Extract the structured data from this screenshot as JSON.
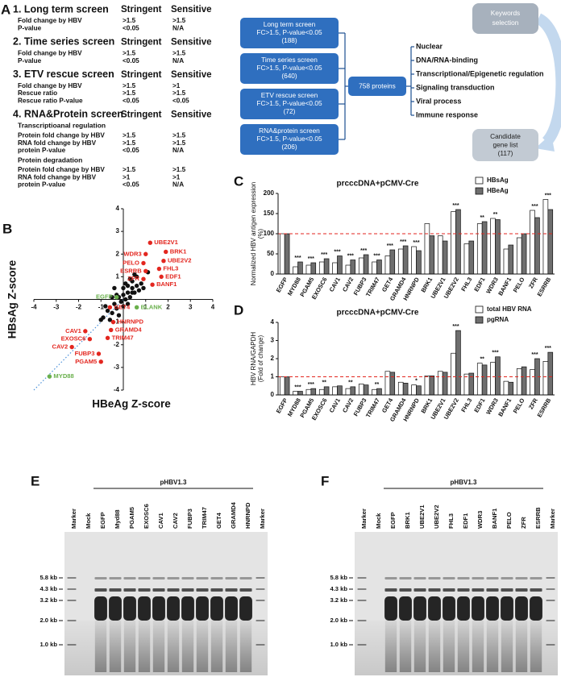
{
  "panel_a": {
    "label": "A",
    "columns": [
      "Stringent",
      "Sensitive"
    ],
    "screens": [
      {
        "title": "1. Long term screen",
        "rows": [
          [
            "Fold change by HBV",
            ">1.5",
            ">1.5"
          ],
          [
            "P-value",
            "<0.05",
            "N/A"
          ]
        ]
      },
      {
        "title": "2. Time series screen",
        "rows": [
          [
            "Fold change by HBV",
            ">1.5",
            ">1.5"
          ],
          [
            "P-value",
            "<0.05",
            "N/A"
          ]
        ]
      },
      {
        "title": "3. ETV rescue screen",
        "rows": [
          [
            "Fold change by HBV",
            ">1.5",
            ">1"
          ],
          [
            "Rescue ratio",
            ">1.5",
            ">1.5"
          ],
          [
            "Rescue ratio P-value",
            "<0.05",
            "<0.05"
          ]
        ]
      },
      {
        "title": "4. RNA&Protein screen",
        "rows": [
          [
            "Transcriptioanal regulation"
          ],
          [
            "Protein fold change by HBV",
            ">1.5",
            ">1.5"
          ],
          [
            "RNA fold change by HBV",
            ">1.5",
            ">1.5"
          ],
          [
            "protein P-value",
            "<0.05",
            "N/A"
          ],
          [
            "Protein degradation"
          ],
          [
            "Protein fold change by HBV",
            ">1.5",
            ">1.5"
          ],
          [
            "RNA fold change by HBV",
            ">1",
            ">1"
          ],
          [
            "protein P-value",
            "<0.05",
            "N/A"
          ]
        ]
      }
    ],
    "flow": {
      "screens": [
        [
          "Long term screen",
          "FC>1.5, P-value<0.05",
          "(188)"
        ],
        [
          "Time series screen",
          "FC>1.5, P-value<0.05",
          "(640)"
        ],
        [
          "ETV rescue screen",
          "FC>1.5, P-value<0.05",
          "(72)"
        ],
        [
          "RNA&protein screen",
          "FC>1.5, P-value<0.05",
          "(206)"
        ]
      ],
      "total": "758 proteins",
      "keywords": [
        "Keywords",
        "selection"
      ],
      "categories": [
        "Nuclear",
        "DNA/RNA-binding",
        "Transcriptional/Epigenetic regulation",
        "Signaling transduction",
        "Viral process",
        "Immune response"
      ],
      "result": [
        "Candidate",
        "gene list",
        "(117)"
      ]
    }
  },
  "chart_data": [
    {
      "type": "scatter",
      "panel": "B",
      "x_label": "HBeAg Z-score",
      "y_label": "HBsAg Z-score",
      "xlim": [
        -4,
        4
      ],
      "ylim": [
        -4,
        4
      ],
      "xticks": [
        -4,
        -3,
        -2,
        -1,
        1,
        2,
        3,
        4
      ],
      "yticks": [
        -4,
        -3,
        -2,
        -1,
        1,
        2,
        3,
        4
      ],
      "series": [
        {
          "color": "#111111",
          "x": [
            -0.9,
            -0.7,
            -0.5,
            -0.4,
            -0.3,
            -0.2,
            -0.1,
            0,
            0.1,
            0.2,
            0.3,
            0.4,
            0.5,
            0.6,
            0.7,
            -0.6,
            -0.3,
            0,
            0.2,
            0.4,
            0.6,
            0.8,
            -0.8,
            -0.4,
            -0.2,
            0.1,
            0.3,
            0.5,
            -0.5,
            0.9,
            1.1,
            0,
            -1.0,
            0.2,
            0.4
          ],
          "y": [
            -0.8,
            -0.5,
            -0.6,
            -0.2,
            -0.4,
            0.1,
            -0.1,
            0.2,
            0,
            0.3,
            0.1,
            0.5,
            0.3,
            0.6,
            0.4,
            -0.9,
            0.2,
            -0.3,
            0.6,
            0.8,
            1.0,
            0.7,
            -0.3,
            0.5,
            -0.7,
            0.7,
            0.9,
            1.1,
            0.1,
            0.5,
            1.2,
            0.5,
            -0.9,
            -0.2,
            0.3
          ]
        },
        {
          "color": "#e3261f",
          "labels": [
            "UBE2V1",
            "BRK1",
            "WDR3",
            "UBE2V2",
            "PELO",
            "FHL3",
            "ESRRB",
            "EDF1",
            "ZFR",
            "BANF1",
            "GET4",
            "HNRNPD",
            "GRAMD4",
            "TRIM47",
            "CAV1",
            "EXOSC6",
            "CAV2",
            "FUBP3",
            "PGAM5"
          ],
          "x": [
            1.2,
            1.9,
            1.0,
            1.8,
            0.9,
            1.6,
            1.0,
            1.7,
            0.9,
            1.3,
            -0.6,
            -0.45,
            -0.55,
            -0.7,
            -1.7,
            -1.5,
            -2.3,
            -1.1,
            -1.0
          ],
          "y": [
            2.5,
            2.1,
            2.0,
            1.7,
            1.6,
            1.35,
            1.25,
            1.0,
            0.9,
            0.65,
            -0.35,
            -1.0,
            -1.35,
            -1.7,
            -1.4,
            -1.75,
            -2.1,
            -2.4,
            -2.75
          ]
        },
        {
          "color": "#6ab04c",
          "labels": [
            "EGFP",
            "BLANK",
            "MYD88"
          ],
          "x": [
            -0.3,
            0.6,
            -3.3
          ],
          "y": [
            0.1,
            -0.35,
            -3.4
          ]
        }
      ]
    },
    {
      "type": "bar",
      "panel": "C",
      "title": "prcccDNA+pCMV-Cre",
      "y_label": [
        "Normalized HBV antigen expression",
        "(%)"
      ],
      "categories": [
        "EGFP",
        "MYD88",
        "PGAM5",
        "EXOSC6",
        "CAV1",
        "CAV2",
        "FUBP3",
        "TRIM47",
        "GET4",
        "GRAMD4",
        "HNRNPD",
        "BRK1",
        "UBE2V1",
        "UBE2V2",
        "FHL3",
        "EDF1",
        "WDR3",
        "BANF1",
        "PELO",
        "ZFR",
        "ESRRB"
      ],
      "series": [
        {
          "name": "HBsAg",
          "color": "#ffffff",
          "values": [
            100,
            18,
            22,
            30,
            28,
            22,
            40,
            30,
            45,
            62,
            68,
            125,
            95,
            155,
            75,
            125,
            138,
            62,
            90,
            158,
            185
          ]
        },
        {
          "name": "HBeAg",
          "color": "#6e6e6e",
          "values": [
            100,
            30,
            28,
            38,
            45,
            35,
            48,
            35,
            60,
            70,
            58,
            95,
            82,
            160,
            82,
            130,
            135,
            72,
            100,
            140,
            160
          ]
        }
      ],
      "significance": [
        null,
        "***",
        "***",
        "***",
        "***",
        "***",
        "***",
        "***",
        "***",
        "***",
        "***",
        null,
        null,
        "***",
        null,
        "**",
        "**",
        null,
        null,
        "***",
        "***"
      ],
      "reference_line": 100,
      "ylim": [
        0,
        200
      ],
      "yticks": [
        0,
        50,
        100,
        150,
        200
      ]
    },
    {
      "type": "bar",
      "panel": "D",
      "title": "prcccDNA+pCMV-Cre",
      "y_label": [
        "HBV RNA/GAPDH",
        "(Fold of change)"
      ],
      "categories": [
        "EGFP",
        "MYD88",
        "PGAM5",
        "EXOSC6",
        "CAV1",
        "CAV2",
        "FUBP3",
        "TRIM47",
        "GET4",
        "GRAMD4",
        "HNRNPD",
        "BRK1",
        "UBE2V1",
        "UBE2V2",
        "FHL3",
        "EDF1",
        "WDR3",
        "BANF1",
        "PELO",
        "ZFR",
        "ESRRB"
      ],
      "series": [
        {
          "name": "total HBV RNA",
          "color": "#ffffff",
          "values": [
            1.0,
            0.2,
            0.3,
            0.3,
            0.45,
            0.35,
            0.6,
            0.3,
            1.3,
            0.7,
            0.55,
            1.05,
            1.3,
            2.3,
            1.15,
            1.75,
            1.8,
            0.75,
            1.45,
            1.4,
            1.85
          ]
        },
        {
          "name": "pgRNA",
          "color": "#6e6e6e",
          "values": [
            1.0,
            0.2,
            0.35,
            0.45,
            0.5,
            0.45,
            0.55,
            0.35,
            1.25,
            0.65,
            0.5,
            1.05,
            1.25,
            3.55,
            1.2,
            1.65,
            2.1,
            0.7,
            1.55,
            2.0,
            2.35
          ]
        }
      ],
      "significance": [
        null,
        "***",
        "***",
        "**",
        null,
        "**",
        null,
        "**",
        null,
        null,
        "*",
        null,
        null,
        "***",
        null,
        "**",
        "***",
        null,
        null,
        "***",
        "***"
      ],
      "reference_line": 1,
      "ylim": [
        0,
        4
      ],
      "yticks": [
        0,
        1,
        2,
        3,
        4
      ]
    }
  ],
  "panel_e": {
    "label": "E",
    "plasmid": "pHBV1.3",
    "lanes": [
      "Marker",
      "Mock",
      "EGFP",
      "Myd88",
      "PGAM5",
      "EXOSC6",
      "CAV1",
      "CAV2",
      "FUBP3",
      "TRIM47",
      "GET4",
      "GRAMD4",
      "HNRNPD",
      "Marker"
    ],
    "markers": [
      "5.8 kb",
      "4.3 kb",
      "3.2 kb",
      "2.0 kb",
      "1.0 kb"
    ]
  },
  "panel_f": {
    "label": "F",
    "plasmid": "pHBV1.3",
    "lanes": [
      "Marker",
      "Mock",
      "EGFP",
      "BRK1",
      "UBE2V1",
      "UBE2V2",
      "FHL3",
      "EDF1",
      "WDR3",
      "BANF1",
      "PELO",
      "ZFR",
      "ESRRB",
      "Marker"
    ],
    "markers": [
      "5.8 kb",
      "4.3 kb",
      "3.2 kb",
      "2.0 kb",
      "1.0 kb"
    ]
  }
}
